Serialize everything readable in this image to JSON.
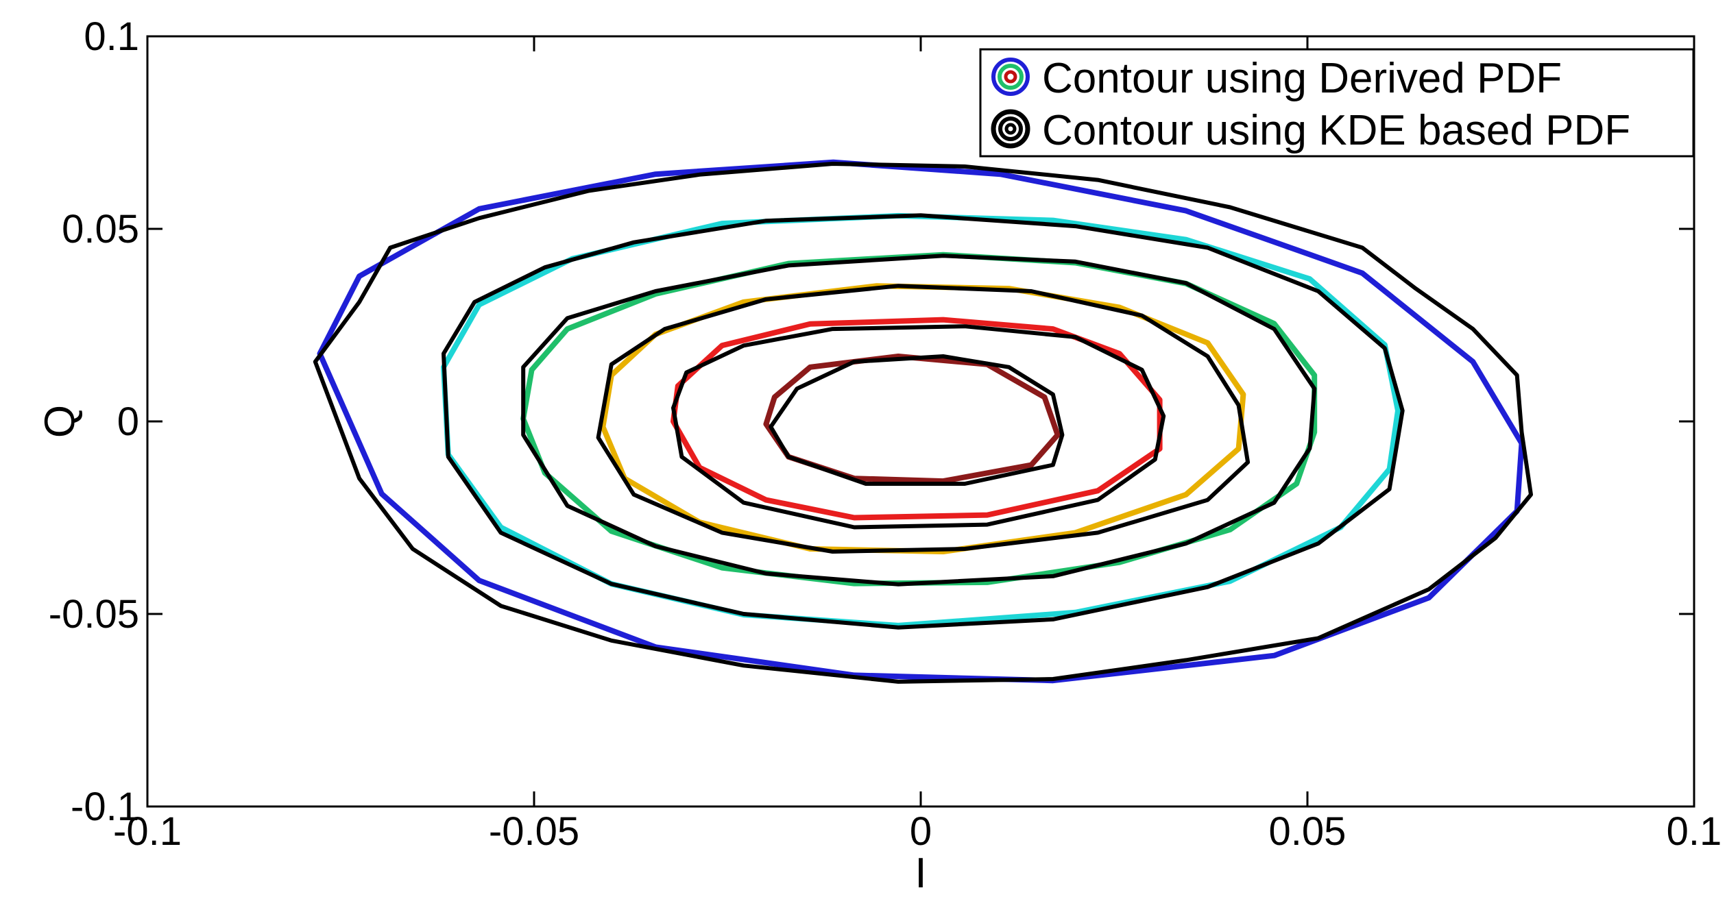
{
  "chart_data": {
    "type": "line",
    "title": "",
    "xlabel": "I",
    "ylabel": "Q",
    "xlim": [
      -0.1,
      0.1
    ],
    "ylim": [
      -0.1,
      0.1
    ],
    "grid": false,
    "legend_position": "top-right",
    "x_ticks": [
      "-0.1",
      "-0.05",
      "0",
      "0.05",
      "0.1"
    ],
    "y_ticks": [
      "-0.1",
      "-0.05",
      "0",
      "0.05",
      "0.1"
    ],
    "x_tick_values": [
      -0.1,
      -0.05,
      0,
      0.05,
      0.1
    ],
    "y_tick_values": [
      -0.1,
      -0.05,
      0,
      0.05,
      0.1
    ],
    "legend": [
      {
        "label": "Contour using Derived PDF",
        "colors": [
          "#1f1fd6",
          "#1fbf6a",
          "#c01010"
        ]
      },
      {
        "label": "Contour using KDE based PDF",
        "colors": [
          "#000000",
          "#ffffff",
          "#000000"
        ]
      }
    ],
    "series": [
      {
        "group": "Derived PDF",
        "color": "#1f1fd6",
        "points": [
          [
            -0.0777,
            0.0176
          ],
          [
            -0.0726,
            0.0377
          ],
          [
            -0.0571,
            0.0552
          ],
          [
            -0.0343,
            0.0642
          ],
          [
            -0.0113,
            0.0673
          ],
          [
            0.0103,
            0.0642
          ],
          [
            0.0343,
            0.0547
          ],
          [
            0.0571,
            0.0385
          ],
          [
            0.0714,
            0.0155
          ],
          [
            0.0777,
            -0.0057
          ],
          [
            0.0771,
            -0.0233
          ],
          [
            0.0657,
            -0.0458
          ],
          [
            0.0457,
            -0.0608
          ],
          [
            0.0171,
            -0.0673
          ],
          [
            -0.0086,
            -0.0659
          ],
          [
            -0.0343,
            -0.0586
          ],
          [
            -0.0571,
            -0.0413
          ],
          [
            -0.0697,
            -0.0188
          ],
          [
            -0.0777,
            0.0176
          ]
        ]
      },
      {
        "group": "Derived PDF",
        "color": "#1ed6d6",
        "points": [
          [
            -0.0617,
            0.0141
          ],
          [
            -0.0571,
            0.0303
          ],
          [
            -0.0451,
            0.0422
          ],
          [
            -0.0257,
            0.0514
          ],
          [
            -0.0029,
            0.0534
          ],
          [
            0.0171,
            0.0522
          ],
          [
            0.0343,
            0.0472
          ],
          [
            0.0503,
            0.037
          ],
          [
            0.06,
            0.0199
          ],
          [
            0.0617,
            0.0028
          ],
          [
            0.0606,
            -0.0124
          ],
          [
            0.0543,
            -0.0275
          ],
          [
            0.04,
            -0.0415
          ],
          [
            0.02,
            -0.0496
          ],
          [
            -0.0029,
            -0.053
          ],
          [
            -0.0229,
            -0.0502
          ],
          [
            -0.04,
            -0.0422
          ],
          [
            -0.0543,
            -0.0275
          ],
          [
            -0.0611,
            -0.0086
          ],
          [
            -0.0617,
            0.0141
          ]
        ]
      },
      {
        "group": "Derived PDF",
        "color": "#1fbf6a",
        "points": [
          [
            -0.0503,
            0.0134
          ],
          [
            -0.0457,
            0.024
          ],
          [
            -0.0343,
            0.0331
          ],
          [
            -0.0171,
            0.041
          ],
          [
            0.0029,
            0.0433
          ],
          [
            0.02,
            0.0412
          ],
          [
            0.0343,
            0.0358
          ],
          [
            0.0457,
            0.0254
          ],
          [
            0.0509,
            0.012
          ],
          [
            0.0509,
            -0.0028
          ],
          [
            0.0486,
            -0.0162
          ],
          [
            0.04,
            -0.0281
          ],
          [
            0.0257,
            -0.0366
          ],
          [
            0.0086,
            -0.0418
          ],
          [
            -0.0086,
            -0.0421
          ],
          [
            -0.0257,
            -0.038
          ],
          [
            -0.04,
            -0.0285
          ],
          [
            -0.0486,
            -0.0134
          ],
          [
            -0.0514,
            0.0007
          ],
          [
            -0.0503,
            0.0134
          ]
        ]
      },
      {
        "group": "Derived PDF",
        "color": "#e8b000",
        "points": [
          [
            -0.04,
            0.012
          ],
          [
            -0.0343,
            0.0226
          ],
          [
            -0.0229,
            0.031
          ],
          [
            -0.0057,
            0.0352
          ],
          [
            0.0114,
            0.0345
          ],
          [
            0.0257,
            0.0296
          ],
          [
            0.0371,
            0.0204
          ],
          [
            0.0417,
            0.007
          ],
          [
            0.0411,
            -0.0071
          ],
          [
            0.0343,
            -0.019
          ],
          [
            0.02,
            -0.0289
          ],
          [
            0.0029,
            -0.0338
          ],
          [
            -0.0143,
            -0.0331
          ],
          [
            -0.0286,
            -0.0262
          ],
          [
            -0.0383,
            -0.0148
          ],
          [
            -0.0411,
            -0.0014
          ],
          [
            -0.04,
            0.012
          ]
        ]
      },
      {
        "group": "Derived PDF",
        "color": "#e81e1e",
        "points": [
          [
            -0.0314,
            0.0092
          ],
          [
            -0.0257,
            0.0197
          ],
          [
            -0.0143,
            0.0253
          ],
          [
            0.0029,
            0.0264
          ],
          [
            0.0171,
            0.024
          ],
          [
            0.0257,
            0.0176
          ],
          [
            0.0309,
            0.0056
          ],
          [
            0.0309,
            -0.0071
          ],
          [
            0.0229,
            -0.018
          ],
          [
            0.0086,
            -0.0243
          ],
          [
            -0.0086,
            -0.025
          ],
          [
            -0.02,
            -0.0204
          ],
          [
            -0.0286,
            -0.012
          ],
          [
            -0.032,
            0.0
          ],
          [
            -0.0314,
            0.0092
          ]
        ]
      },
      {
        "group": "Derived PDF",
        "color": "#8b1a1a",
        "points": [
          [
            -0.0189,
            0.0063
          ],
          [
            -0.0143,
            0.0141
          ],
          [
            -0.0029,
            0.0169
          ],
          [
            0.0086,
            0.0148
          ],
          [
            0.016,
            0.0063
          ],
          [
            0.0177,
            -0.0035
          ],
          [
            0.0143,
            -0.0113
          ],
          [
            0.0029,
            -0.0155
          ],
          [
            -0.0086,
            -0.0148
          ],
          [
            -0.0171,
            -0.0092
          ],
          [
            -0.02,
            -0.0007
          ],
          [
            -0.0189,
            0.0063
          ]
        ]
      },
      {
        "group": "KDE based PDF",
        "color": "#000000",
        "points": [
          [
            -0.0783,
            0.0155
          ],
          [
            -0.0726,
            0.031
          ],
          [
            -0.0686,
            0.0451
          ],
          [
            -0.0571,
            0.0528
          ],
          [
            -0.0429,
            0.0599
          ],
          [
            -0.0286,
            0.0641
          ],
          [
            -0.0114,
            0.0669
          ],
          [
            0.0057,
            0.0662
          ],
          [
            0.0229,
            0.0627
          ],
          [
            0.04,
            0.0556
          ],
          [
            0.0571,
            0.0451
          ],
          [
            0.064,
            0.0345
          ],
          [
            0.0714,
            0.024
          ],
          [
            0.0771,
            0.012
          ],
          [
            0.0777,
            -0.0028
          ],
          [
            0.0789,
            -0.019
          ],
          [
            0.0743,
            -0.0303
          ],
          [
            0.0657,
            -0.0436
          ],
          [
            0.0514,
            -0.0563
          ],
          [
            0.0343,
            -0.062
          ],
          [
            0.0171,
            -0.0669
          ],
          [
            -0.0029,
            -0.0676
          ],
          [
            -0.0229,
            -0.0634
          ],
          [
            -0.04,
            -0.0569
          ],
          [
            -0.0543,
            -0.0479
          ],
          [
            -0.0657,
            -0.0331
          ],
          [
            -0.0726,
            -0.0148
          ],
          [
            -0.0783,
            0.0155
          ]
        ]
      },
      {
        "group": "KDE based PDF",
        "color": "#000000",
        "points": [
          [
            -0.0617,
            0.0176
          ],
          [
            -0.0577,
            0.031
          ],
          [
            -0.0486,
            0.04
          ],
          [
            -0.0371,
            0.0465
          ],
          [
            -0.02,
            0.0521
          ],
          [
            0.0,
            0.0535
          ],
          [
            0.02,
            0.0507
          ],
          [
            0.0371,
            0.0451
          ],
          [
            0.0514,
            0.0338
          ],
          [
            0.06,
            0.019
          ],
          [
            0.0623,
            0.0028
          ],
          [
            0.0606,
            -0.0176
          ],
          [
            0.0514,
            -0.0317
          ],
          [
            0.0371,
            -0.043
          ],
          [
            0.0171,
            -0.0514
          ],
          [
            -0.0029,
            -0.0535
          ],
          [
            -0.0229,
            -0.05
          ],
          [
            -0.04,
            -0.0422
          ],
          [
            -0.0543,
            -0.0289
          ],
          [
            -0.0611,
            -0.0092
          ],
          [
            -0.0617,
            0.0176
          ]
        ]
      },
      {
        "group": "KDE based PDF",
        "color": "#000000",
        "points": [
          [
            -0.0514,
            0.0141
          ],
          [
            -0.0457,
            0.0268
          ],
          [
            -0.0343,
            0.0338
          ],
          [
            -0.0171,
            0.0405
          ],
          [
            0.0029,
            0.043
          ],
          [
            0.02,
            0.0415
          ],
          [
            0.0343,
            0.0359
          ],
          [
            0.0457,
            0.024
          ],
          [
            0.0509,
            0.0085
          ],
          [
            0.0503,
            -0.007
          ],
          [
            0.0457,
            -0.0211
          ],
          [
            0.0343,
            -0.0317
          ],
          [
            0.0171,
            -0.0402
          ],
          [
            -0.0029,
            -0.0423
          ],
          [
            -0.02,
            -0.0395
          ],
          [
            -0.0343,
            -0.0324
          ],
          [
            -0.0457,
            -0.0219
          ],
          [
            -0.0514,
            -0.0035
          ],
          [
            -0.0514,
            0.0141
          ]
        ]
      },
      {
        "group": "KDE based PDF",
        "color": "#000000",
        "points": [
          [
            -0.04,
            0.0148
          ],
          [
            -0.0331,
            0.024
          ],
          [
            -0.02,
            0.0317
          ],
          [
            -0.0029,
            0.0352
          ],
          [
            0.0143,
            0.0338
          ],
          [
            0.0286,
            0.0275
          ],
          [
            0.0371,
            0.0169
          ],
          [
            0.0411,
            0.0042
          ],
          [
            0.0423,
            -0.0106
          ],
          [
            0.0371,
            -0.0204
          ],
          [
            0.0229,
            -0.0289
          ],
          [
            0.0057,
            -0.0331
          ],
          [
            -0.0114,
            -0.0338
          ],
          [
            -0.0257,
            -0.0289
          ],
          [
            -0.0371,
            -0.019
          ],
          [
            -0.0417,
            -0.0042
          ],
          [
            -0.04,
            0.0148
          ]
        ]
      },
      {
        "group": "KDE based PDF",
        "color": "#000000",
        "points": [
          [
            -0.0303,
            0.0127
          ],
          [
            -0.0229,
            0.0197
          ],
          [
            -0.0114,
            0.024
          ],
          [
            0.0057,
            0.0247
          ],
          [
            0.02,
            0.0219
          ],
          [
            0.0286,
            0.0134
          ],
          [
            0.0314,
            0.0014
          ],
          [
            0.0303,
            -0.0099
          ],
          [
            0.0229,
            -0.0204
          ],
          [
            0.0086,
            -0.0268
          ],
          [
            -0.0086,
            -0.0275
          ],
          [
            -0.0229,
            -0.0211
          ],
          [
            -0.0309,
            -0.0092
          ],
          [
            -0.032,
            0.0035
          ],
          [
            -0.0303,
            0.0127
          ]
        ]
      },
      {
        "group": "KDE based PDF",
        "color": "#000000",
        "points": [
          [
            -0.016,
            0.0085
          ],
          [
            -0.0086,
            0.0155
          ],
          [
            0.0029,
            0.0169
          ],
          [
            0.0114,
            0.0141
          ],
          [
            0.0171,
            0.007
          ],
          [
            0.0183,
            -0.0035
          ],
          [
            0.0171,
            -0.0113
          ],
          [
            0.0057,
            -0.0162
          ],
          [
            -0.0071,
            -0.0162
          ],
          [
            -0.0171,
            -0.0092
          ],
          [
            -0.0194,
            -0.0014
          ],
          [
            -0.016,
            0.0085
          ]
        ]
      }
    ]
  }
}
